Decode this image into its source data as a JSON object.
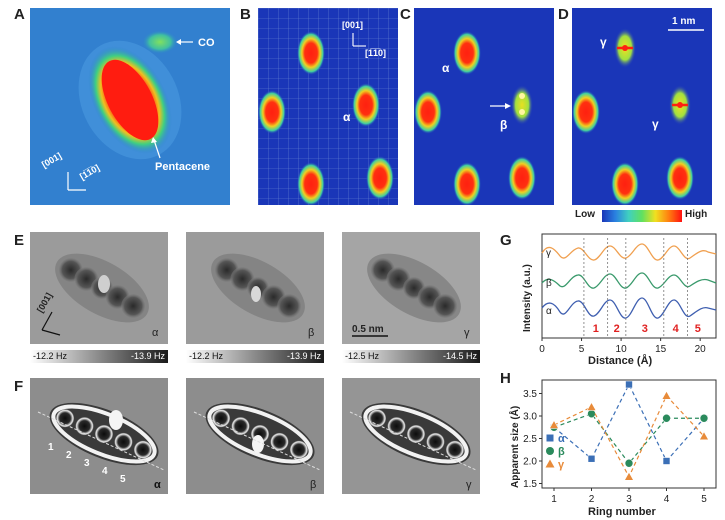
{
  "panels": {
    "A": {
      "letter": "A",
      "co_label": "CO",
      "molecule_label": "Pentacene",
      "axis1": "[001]",
      "axis2": "[1̅1̅0]"
    },
    "B": {
      "letter": "B",
      "axis1": "[001]",
      "axis2": "[1̅1̅0]",
      "alpha": "α"
    },
    "C": {
      "letter": "C",
      "alpha": "α",
      "beta": "β"
    },
    "D": {
      "letter": "D",
      "scale": "1 nm",
      "gamma1": "γ",
      "gamma2": "γ"
    },
    "colorscale": {
      "low": "Low",
      "high": "High"
    },
    "E": {
      "letter": "E",
      "axis": "[001]",
      "labels": [
        "α",
        "β",
        "γ"
      ],
      "scale": "0.5 nm",
      "bars": [
        {
          "left": "-12.2 Hz",
          "right": "-13.9 Hz"
        },
        {
          "left": "-12.2 Hz",
          "right": "-13.9 Hz"
        },
        {
          "left": "-12.5 Hz",
          "right": "-14.5 Hz"
        }
      ]
    },
    "F": {
      "letter": "F",
      "labels": [
        "α",
        "β",
        "γ"
      ],
      "rings": [
        "1",
        "2",
        "3",
        "4",
        "5"
      ]
    },
    "G": {
      "letter": "G"
    },
    "H": {
      "letter": "H"
    }
  },
  "chart_data": [
    {
      "type": "line",
      "panel": "G",
      "xlabel": "Distance (Å)",
      "ylabel": "Intensity (a.u.)",
      "xlim": [
        0,
        22
      ],
      "xticks": [
        0,
        5,
        10,
        15,
        20
      ],
      "series": [
        {
          "name": "γ"
        },
        {
          "name": "β"
        },
        {
          "name": "α"
        }
      ],
      "ring_labels": [
        "1",
        "2",
        "3",
        "4",
        "5"
      ],
      "dividers": [
        5.3,
        8.3,
        10.6,
        15.4,
        18.4
      ]
    },
    {
      "type": "line",
      "panel": "H",
      "xlabel": "Ring number",
      "ylabel": "Apparent size (Å)",
      "xlim": [
        1,
        5
      ],
      "ylim": [
        1.4,
        3.8
      ],
      "xticks": [
        1,
        2,
        3,
        4,
        5
      ],
      "yticks": [
        1.5,
        2.0,
        2.5,
        3.0,
        3.5
      ],
      "ytick_labels": [
        "1.5",
        "2.0",
        "2.5",
        "3.0",
        "3.5"
      ],
      "x": [
        1,
        2,
        3,
        4,
        5
      ],
      "series": [
        {
          "name": "α",
          "color": "#3b6fb6",
          "marker": "square",
          "values": [
            2.75,
            2.05,
            3.7,
            2.0,
            2.95
          ]
        },
        {
          "name": "β",
          "color": "#2a8a5c",
          "marker": "circle",
          "values": [
            2.75,
            3.05,
            1.95,
            2.95,
            2.95
          ]
        },
        {
          "name": "γ",
          "color": "#e88b3a",
          "marker": "triangle",
          "values": [
            2.8,
            3.2,
            1.65,
            3.45,
            2.55
          ]
        }
      ]
    }
  ]
}
